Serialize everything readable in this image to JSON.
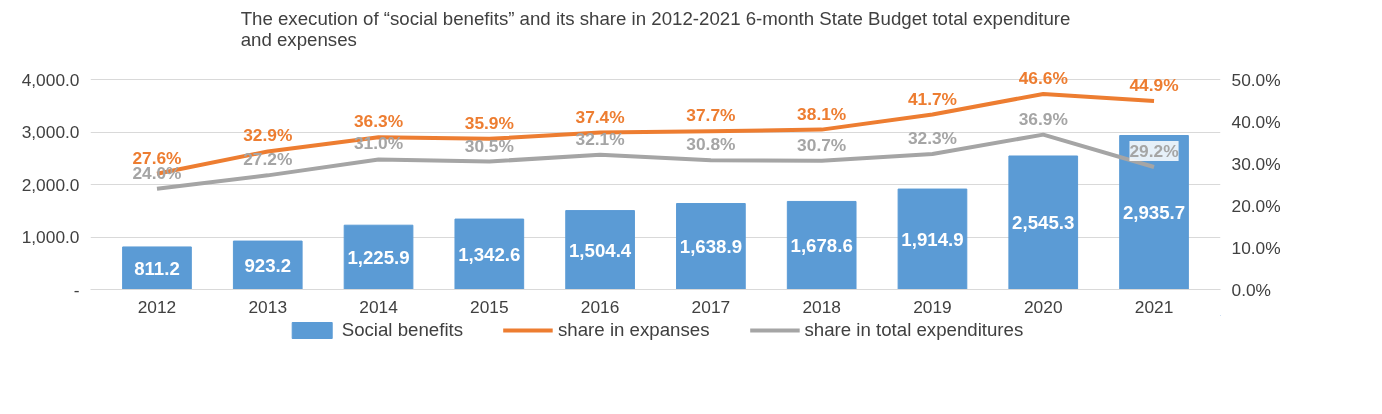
{
  "chart_data": {
    "type": "bar",
    "title": "The execution of “social benefits” and its share in 2012-2021 6-month State Budget total expenditure and expenses",
    "categories": [
      "2012",
      "2013",
      "2014",
      "2015",
      "2016",
      "2017",
      "2018",
      "2019",
      "2020",
      "2021"
    ],
    "series": [
      {
        "name": "Social benefits",
        "color": "#5b9bd5",
        "values": [
          811.2,
          923.2,
          1225.9,
          1342.6,
          1504.4,
          1638.9,
          1678.6,
          1914.9,
          2545.3,
          2935.7
        ],
        "value_labels": [
          "811.2",
          "923.2",
          "1,225.9",
          "1,342.6",
          "1,504.4",
          "1,638.9",
          "1,678.6",
          "1,914.9",
          "2,545.3",
          "2,935.7"
        ]
      },
      {
        "name": "share in expanses",
        "type": "line",
        "axis": "y2",
        "color": "#ed7d31",
        "values": [
          27.6,
          32.9,
          36.3,
          35.9,
          37.4,
          37.7,
          38.1,
          41.7,
          46.6,
          44.9
        ],
        "value_labels": [
          "27.6%",
          "32.9%",
          "36.3%",
          "35.9%",
          "37.4%",
          "37.7%",
          "38.1%",
          "41.7%",
          "46.6%",
          "44.9%"
        ]
      },
      {
        "name": "share in total expenditures",
        "type": "line",
        "axis": "y2",
        "color": "#a5a5a5",
        "values": [
          24.0,
          27.2,
          31.0,
          30.5,
          32.1,
          30.8,
          30.7,
          32.3,
          36.9,
          29.2
        ],
        "value_labels": [
          "24.0%",
          "27.2%",
          "31.0%",
          "30.5%",
          "32.1%",
          "30.8%",
          "30.7%",
          "32.3%",
          "36.9%",
          "29.2%"
        ]
      }
    ],
    "ylim": [
      0,
      4000
    ],
    "yticks": [
      {
        "value": 0,
        "label": "-"
      },
      {
        "value": 1000,
        "label": "1,000.0"
      },
      {
        "value": 2000,
        "label": "2,000.0"
      },
      {
        "value": 3000,
        "label": "3,000.0"
      },
      {
        "value": 4000,
        "label": "4,000.0"
      }
    ],
    "y2lim": [
      0,
      50
    ],
    "y2ticks": [
      {
        "value": 0,
        "label": "0.0%"
      },
      {
        "value": 10,
        "label": "10.0%"
      },
      {
        "value": 20,
        "label": "20.0%"
      },
      {
        "value": 30,
        "label": "30.0%"
      },
      {
        "value": 40,
        "label": "40.0%"
      },
      {
        "value": 50,
        "label": "50.0%"
      }
    ],
    "grid": "y",
    "legend": "bottom"
  }
}
